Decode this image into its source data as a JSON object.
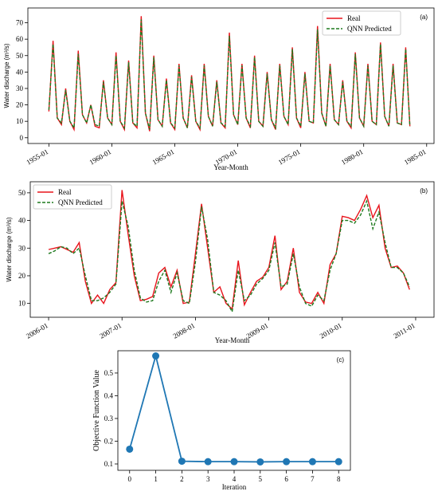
{
  "chart_data": [
    {
      "type": "line",
      "annotation": "(a)",
      "x_label": "Year-Month",
      "y_label": "Water discharge (m³/s)",
      "legend": "upper right",
      "grid": false,
      "x": [
        "1955-01",
        "1955-05",
        "1955-09",
        "1956-01",
        "1956-05",
        "1956-09",
        "1957-01",
        "1957-05",
        "1957-09",
        "1958-01",
        "1958-05",
        "1958-09",
        "1959-01",
        "1959-05",
        "1959-09",
        "1960-01",
        "1960-05",
        "1960-09",
        "1961-01",
        "1961-05",
        "1961-09",
        "1962-01",
        "1962-05",
        "1962-09",
        "1963-01",
        "1963-05",
        "1963-09",
        "1964-01",
        "1964-05",
        "1964-09",
        "1965-01",
        "1965-05",
        "1965-09",
        "1966-01",
        "1966-05",
        "1966-09",
        "1967-01",
        "1967-05",
        "1967-09",
        "1968-01",
        "1968-05",
        "1968-09",
        "1969-01",
        "1969-05",
        "1969-09",
        "1970-01",
        "1970-05",
        "1970-09",
        "1971-01",
        "1971-05",
        "1971-09",
        "1972-01",
        "1972-05",
        "1972-09",
        "1973-01",
        "1973-05",
        "1973-09",
        "1974-01",
        "1974-05",
        "1974-09",
        "1975-01",
        "1975-05",
        "1975-09",
        "1976-01",
        "1976-05",
        "1976-09",
        "1977-01",
        "1977-05",
        "1977-09",
        "1978-01",
        "1978-05",
        "1978-09",
        "1979-01",
        "1979-05",
        "1979-09",
        "1980-01",
        "1980-05",
        "1980-09",
        "1981-01",
        "1981-05",
        "1981-09",
        "1982-01",
        "1982-05",
        "1982-09",
        "1983-01",
        "1983-05",
        "1983-09"
      ],
      "series": [
        {
          "name": "Real",
          "color": "#e8141c",
          "linestyle": "solid",
          "values": [
            16,
            59,
            12,
            8,
            30,
            10,
            5,
            53,
            14,
            9,
            20,
            7,
            6,
            35,
            12,
            8,
            52,
            10,
            5,
            47,
            9,
            6,
            74,
            15,
            4,
            50,
            11,
            7,
            36,
            9,
            5,
            45,
            12,
            6,
            38,
            10,
            5,
            45,
            13,
            7,
            35,
            9,
            6,
            64,
            14,
            8,
            45,
            12,
            6,
            50,
            10,
            7,
            40,
            11,
            5,
            45,
            13,
            8,
            55,
            12,
            6,
            40,
            10,
            9,
            68,
            15,
            7,
            45,
            11,
            8,
            35,
            10,
            6,
            52,
            12,
            7,
            45,
            10,
            8,
            58,
            13,
            7,
            45,
            9,
            8,
            55,
            7
          ]
        },
        {
          "name": "QNN Predicted",
          "color": "#1e7a1e",
          "linestyle": "dashed",
          "values": [
            17,
            57,
            12,
            9,
            29,
            10,
            6,
            51,
            14,
            9,
            20,
            8,
            7,
            34,
            12,
            8,
            50,
            10,
            6,
            46,
            9,
            7,
            72,
            15,
            5,
            49,
            11,
            7,
            35,
            9,
            6,
            44,
            12,
            6,
            37,
            10,
            6,
            44,
            13,
            7,
            34,
            9,
            7,
            62,
            14,
            8,
            44,
            12,
            7,
            49,
            10,
            7,
            39,
            11,
            6,
            44,
            13,
            8,
            54,
            12,
            7,
            39,
            10,
            9,
            66,
            15,
            7,
            44,
            11,
            8,
            34,
            10,
            7,
            51,
            12,
            7,
            44,
            10,
            8,
            57,
            13,
            7,
            44,
            9,
            8,
            54,
            7
          ]
        }
      ],
      "xlim": [
        "1953-05",
        "1985-08"
      ],
      "xticks": [
        "1955-01",
        "1960-01",
        "1965-01",
        "1970-01",
        "1975-01",
        "1980-01",
        "1985-01"
      ],
      "ylim": [
        -3.5,
        79
      ],
      "yticks": [
        0,
        10,
        20,
        30,
        40,
        50,
        60,
        70
      ]
    },
    {
      "type": "line",
      "annotation": "(b)",
      "x_label": "Year-Month",
      "y_label": "Water discharge (m³/s)",
      "legend": "upper left",
      "grid": false,
      "x": [
        "2006-01",
        "2006-02",
        "2006-03",
        "2006-04",
        "2006-05",
        "2006-06",
        "2006-07",
        "2006-08",
        "2006-09",
        "2006-10",
        "2006-11",
        "2006-12",
        "2007-01",
        "2007-02",
        "2007-03",
        "2007-04",
        "2007-05",
        "2007-06",
        "2007-07",
        "2007-08",
        "2007-09",
        "2007-10",
        "2007-11",
        "2007-12",
        "2008-01",
        "2008-02",
        "2008-03",
        "2008-04",
        "2008-05",
        "2008-06",
        "2008-07",
        "2008-08",
        "2008-09",
        "2008-10",
        "2008-11",
        "2008-12",
        "2009-01",
        "2009-02",
        "2009-03",
        "2009-04",
        "2009-05",
        "2009-06",
        "2009-07",
        "2009-08",
        "2009-09",
        "2009-10",
        "2009-11",
        "2009-12",
        "2010-01",
        "2010-02",
        "2010-03",
        "2010-04",
        "2010-05",
        "2010-06",
        "2010-07",
        "2010-08",
        "2010-09",
        "2010-10",
        "2010-11",
        "2010-12"
      ],
      "series": [
        {
          "name": "Real",
          "color": "#e8141c",
          "linestyle": "solid",
          "values": [
            29.5,
            30,
            30.5,
            29.5,
            28.5,
            32,
            18,
            10,
            13,
            10,
            15,
            17.5,
            51,
            35,
            20,
            11,
            11.5,
            12.5,
            21,
            23,
            16,
            22,
            10,
            10.5,
            28,
            46,
            30,
            14,
            16,
            10,
            8,
            25.5,
            9.5,
            14,
            18,
            19.5,
            23,
            34.5,
            15,
            18,
            30,
            14,
            10.5,
            10,
            14,
            10,
            24,
            28,
            41.5,
            41,
            40,
            44,
            49,
            41,
            45.5,
            30,
            23,
            23.5,
            21,
            15
          ]
        },
        {
          "name": "QNN Predicted",
          "color": "#1e7a1e",
          "linestyle": "dashed",
          "values": [
            28,
            29,
            30.5,
            30,
            28,
            30,
            20,
            11,
            11,
            12,
            14,
            17,
            47,
            38,
            22,
            12,
            10.5,
            11,
            18,
            22,
            14,
            21,
            11,
            10,
            25,
            45,
            33,
            14,
            13,
            11,
            7,
            22,
            11,
            13,
            17,
            19,
            22,
            32,
            16,
            17,
            28,
            16,
            10,
            9,
            13,
            11,
            22,
            28,
            40,
            40,
            39,
            42,
            47,
            37,
            43,
            32,
            23,
            23,
            21,
            16
          ]
        }
      ],
      "xlim": [
        "2005-10",
        "2011-04"
      ],
      "xticks": [
        "2006-01",
        "2007-01",
        "2008-01",
        "2009-01",
        "2010-01",
        "2011-01"
      ],
      "ylim": [
        5,
        54
      ],
      "yticks": [
        10,
        20,
        30,
        40,
        50
      ]
    },
    {
      "type": "marker-line",
      "annotation": "(c)",
      "x_label": "Iteration",
      "y_label": "Objective Function Value",
      "grid": false,
      "x": [
        0,
        1,
        2,
        3,
        4,
        5,
        6,
        7,
        8
      ],
      "series": [
        {
          "color": "#1f77b4",
          "values": [
            0.165,
            0.575,
            0.112,
            0.11,
            0.11,
            0.109,
            0.11,
            0.11,
            0.11
          ]
        }
      ],
      "xlim": [
        -0.45,
        8.45
      ],
      "xticks": [
        0,
        1,
        2,
        3,
        4,
        5,
        6,
        7,
        8
      ],
      "ylim": [
        0.072,
        0.598
      ],
      "yticks": [
        0.1,
        0.2,
        0.3,
        0.4,
        0.5
      ]
    }
  ]
}
